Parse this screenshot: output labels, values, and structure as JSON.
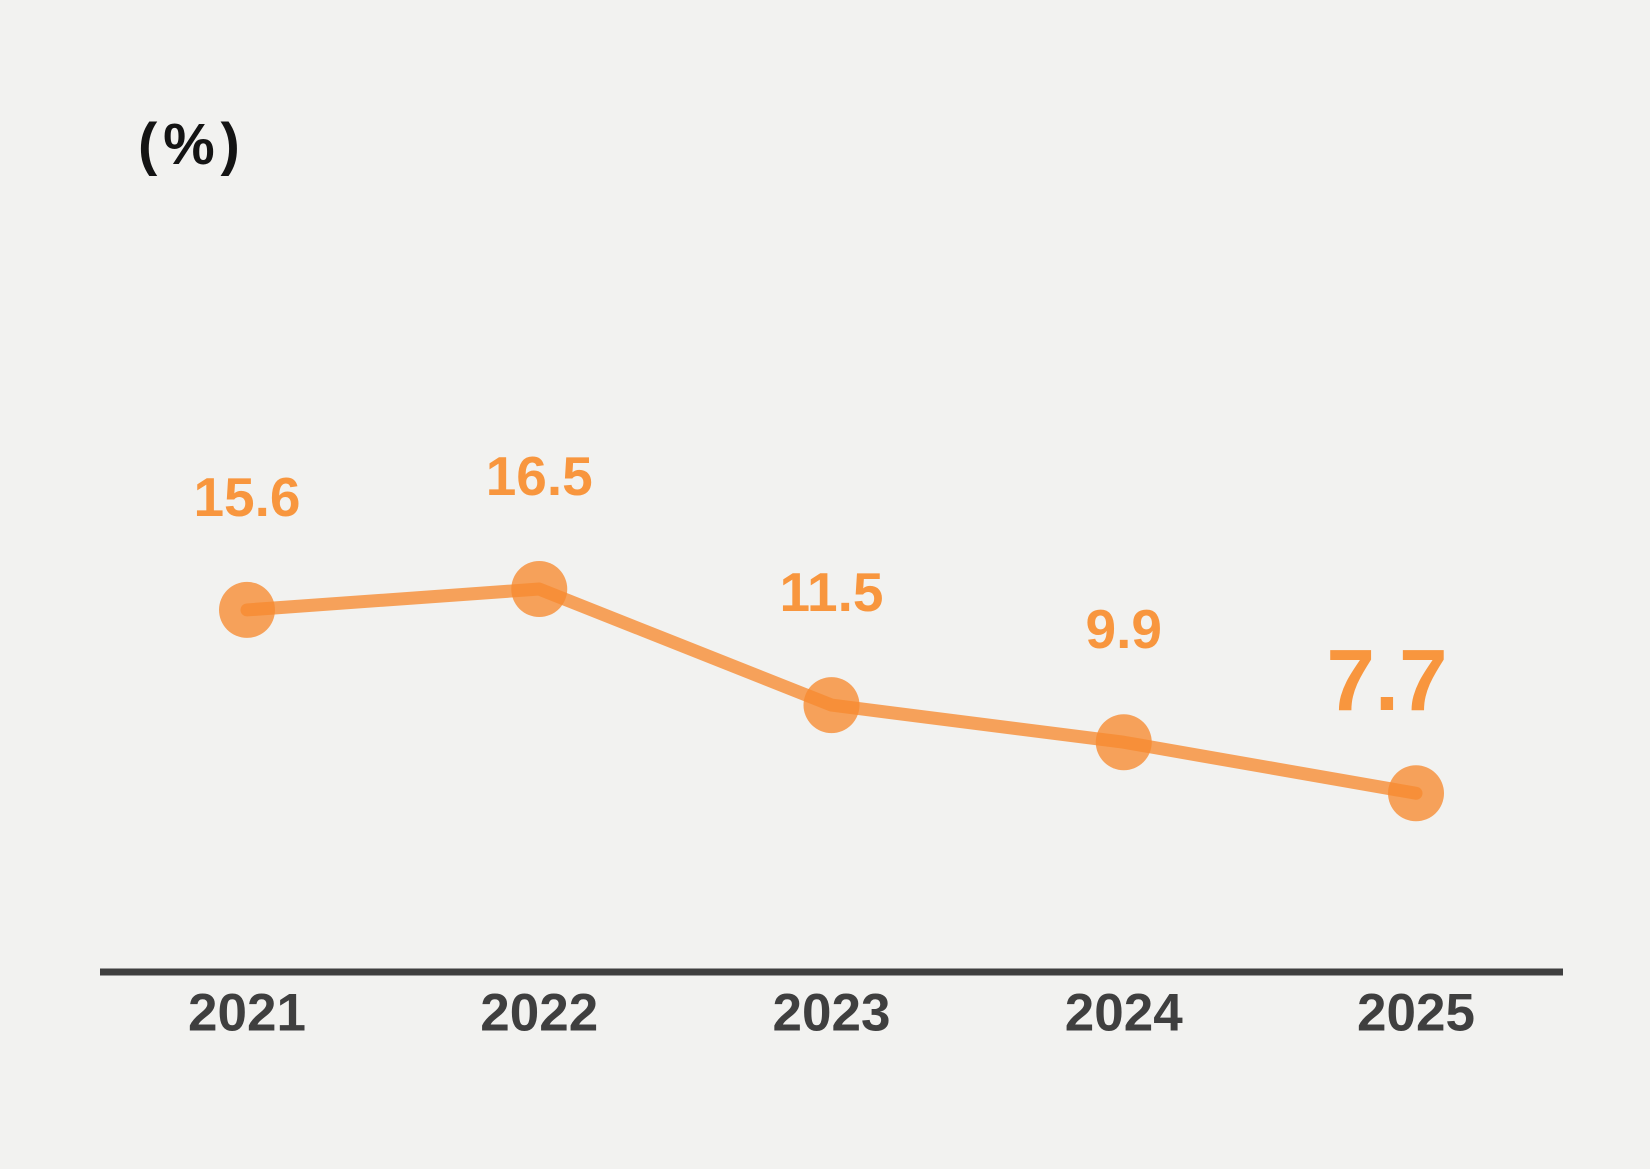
{
  "page": {
    "background": "#F2F2F0"
  },
  "chart_data": {
    "type": "line",
    "title": "",
    "unit_label": "(%)",
    "categories": [
      "2021",
      "2022",
      "2023",
      "2024",
      "2025"
    ],
    "series": [
      {
        "name": "percentage",
        "values": [
          15.6,
          16.5,
          11.5,
          9.9,
          7.7
        ]
      }
    ],
    "data_labels": [
      "15.6",
      "16.5",
      "11.5",
      "9.9",
      "7.7"
    ],
    "xlabel": "",
    "ylabel": "(%)",
    "ylim": [
      0,
      18
    ],
    "grid": "off",
    "legend": "none",
    "marker": "circle",
    "colors": {
      "series": "#F78B30",
      "data_label": "#F8963E",
      "axis_line": "#3F3F3F",
      "tick_label": "#3F3F3F",
      "unit_label": "#141414"
    }
  }
}
